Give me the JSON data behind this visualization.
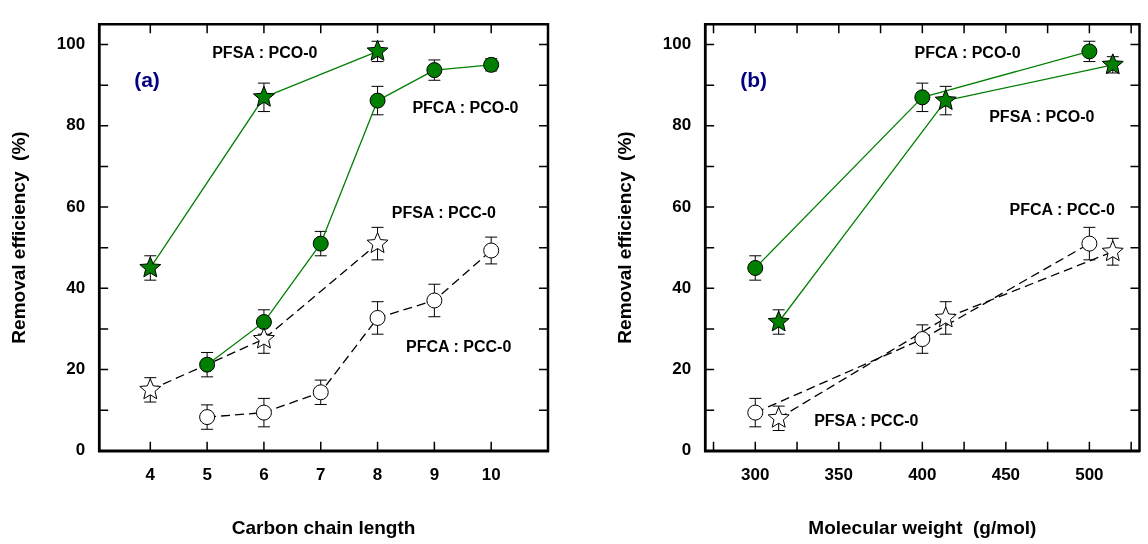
{
  "chart_data": [
    {
      "type": "line",
      "xlabel": "Carbon chain length",
      "ylabel": "Removal efficiency  (%)",
      "xlim": [
        3.1,
        11
      ],
      "ylim": [
        0,
        105
      ],
      "xticks": [
        4,
        5,
        6,
        7,
        8,
        9,
        10
      ],
      "yticks": [
        0,
        {
          "value": 10,
          "label": null
        },
        20,
        {
          "value": 30,
          "label": null
        },
        40,
        {
          "value": 50,
          "label": null
        },
        60,
        {
          "value": 70,
          "label": null
        },
        80,
        {
          "value": 90,
          "label": null
        },
        100
      ],
      "series": [
        {
          "color": "#007f00",
          "marker": "star",
          "line_style": "solid",
          "x": [
            4,
            6,
            8
          ],
          "values": [
            45,
            87,
            98.3
          ],
          "errors": [
            3,
            3.5,
            2.5
          ]
        },
        {
          "color": "#007f00",
          "marker": "circle",
          "line_style": "solid",
          "x": [
            5,
            6,
            7,
            8,
            9,
            10
          ],
          "values": [
            21.2,
            31.7,
            51,
            86.2,
            93.7,
            95
          ],
          "errors": [
            3,
            3,
            3,
            3.5,
            2.5,
            1.5
          ]
        },
        {
          "color": "#000000",
          "marker": "star",
          "line_style": "dashed",
          "x": [
            4,
            6,
            8
          ],
          "values": [
            15,
            27.5,
            51
          ],
          "errors": [
            3,
            3.5,
            4
          ]
        },
        {
          "color": "#000000",
          "marker": "circle",
          "line_style": "dashed",
          "x": [
            5,
            6,
            7,
            8,
            9,
            10
          ],
          "values": [
            8.3,
            9.4,
            14.4,
            32.7,
            37,
            49.3
          ],
          "errors": [
            3,
            3.5,
            3,
            4,
            4,
            3.3
          ]
        }
      ],
      "annotations": [
        "(a)",
        "PFSA : PCO-0",
        "PFCA : PCO-0",
        "PFSA : PCC-0",
        "PFCA : PCC-0"
      ]
    },
    {
      "type": "line",
      "xlabel": "Molecular weight  (g/mol)",
      "ylabel": "Removal efficiency  (%)",
      "xlim": [
        270,
        530
      ],
      "ylim": [
        0,
        105
      ],
      "xticks": [
        {
          "value": 275,
          "label": null
        },
        300,
        {
          "value": 325,
          "label": null
        },
        350,
        {
          "value": 375,
          "label": null
        },
        400,
        {
          "value": 425,
          "label": null
        },
        450,
        {
          "value": 475,
          "label": null
        },
        500,
        {
          "value": 525,
          "label": null
        }
      ],
      "yticks": [
        0,
        {
          "value": 10,
          "label": null
        },
        20,
        {
          "value": 30,
          "label": null
        },
        40,
        {
          "value": 50,
          "label": null
        },
        60,
        {
          "value": 70,
          "label": null
        },
        80,
        {
          "value": 90,
          "label": null
        },
        100
      ],
      "series": [
        {
          "color": "#007f00",
          "marker": "circle",
          "line_style": "solid",
          "x": [
            300,
            400,
            500
          ],
          "values": [
            45,
            87,
            98.3
          ],
          "errors": [
            3,
            3.5,
            2.5
          ]
        },
        {
          "color": "#007f00",
          "marker": "star",
          "line_style": "solid",
          "x": [
            314,
            414,
            514
          ],
          "values": [
            31.7,
            86.2,
            95
          ],
          "errors": [
            3,
            3.5,
            2
          ]
        },
        {
          "color": "#000000",
          "marker": "circle",
          "line_style": "dashed",
          "x": [
            300,
            400,
            500
          ],
          "values": [
            9.4,
            27.5,
            51
          ],
          "errors": [
            3.5,
            3.5,
            4
          ]
        },
        {
          "color": "#000000",
          "marker": "star",
          "line_style": "dashed",
          "x": [
            314,
            414,
            514
          ],
          "values": [
            8,
            32.7,
            49
          ],
          "errors": [
            3,
            4,
            3.3
          ]
        }
      ],
      "annotations": [
        "(b)",
        "PFCA : PCO-0",
        "PFSA : PCO-0",
        "PFCA : PCC-0",
        "PFSA : PCC-0"
      ]
    }
  ]
}
